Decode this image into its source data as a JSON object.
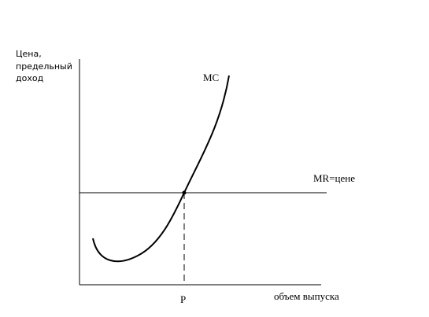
{
  "y_axis": {
    "label_lines": [
      "Цена,",
      "предельный",
      "доход"
    ]
  },
  "x_axis": {
    "label": "объем выпуска"
  },
  "curves": [
    {
      "label": "MC"
    },
    {
      "label": "MR=цене"
    }
  ],
  "point": {
    "label": "P"
  }
}
